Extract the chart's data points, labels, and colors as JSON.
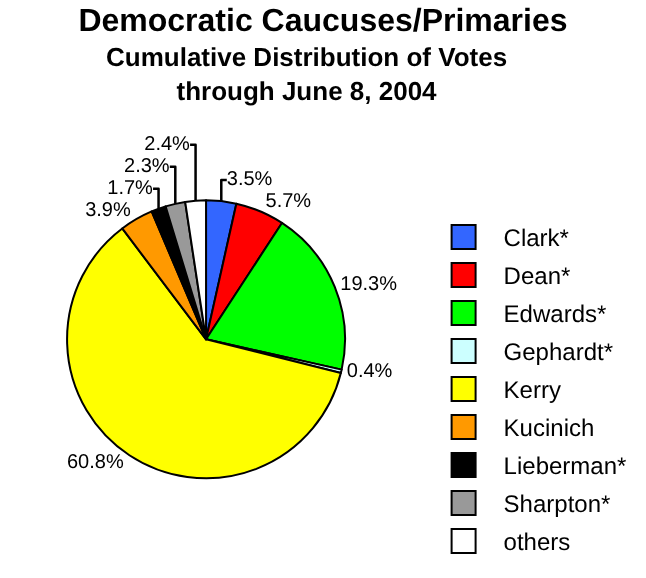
{
  "chart_data": {
    "type": "pie",
    "title": "Democratic Caucuses/Primaries",
    "subtitle": "Cumulative Distribution of Votes\nthrough June 8, 2004",
    "categories": [
      "Clark*",
      "Dean*",
      "Edwards*",
      "Gephardt*",
      "Kerry",
      "Kucinich",
      "Lieberman*",
      "Sharpton*",
      "others"
    ],
    "values": [
      3.5,
      5.7,
      19.3,
      0.4,
      60.8,
      3.9,
      1.7,
      2.3,
      2.4
    ],
    "value_labels": [
      "3.5%",
      "5.7%",
      "19.3%",
      "0.4%",
      "60.8%",
      "3.9%",
      "1.7%",
      "2.3%",
      "2.4%"
    ],
    "colors": [
      "#3366ff",
      "#ff0000",
      "#00ff00",
      "#ccffff",
      "#ffff00",
      "#ff9900",
      "#000000",
      "#999999",
      "#ffffff"
    ],
    "legend": "right"
  }
}
